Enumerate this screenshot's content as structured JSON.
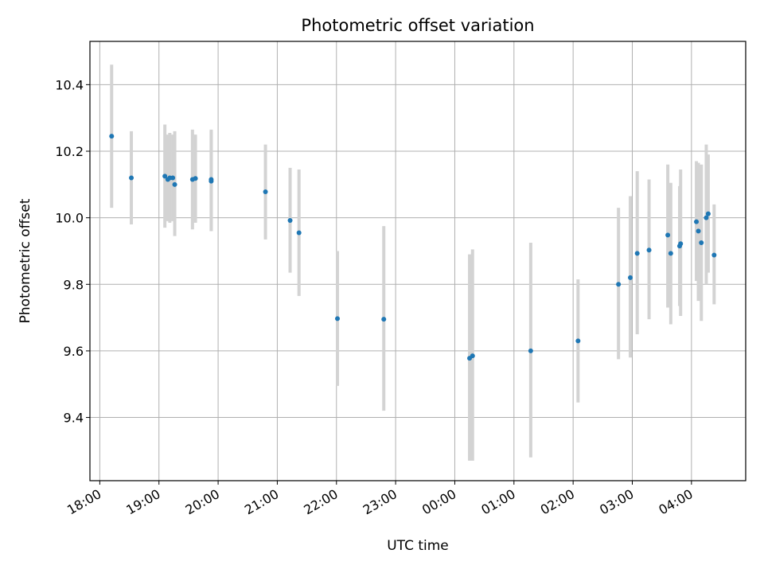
{
  "chart_data": {
    "type": "scatter",
    "title": "Photometric offset variation",
    "xlabel": "UTC time",
    "ylabel": "Photometric offset",
    "grid": true,
    "x_axis": "time",
    "xlim": [
      "2000-01-01T17:50",
      "2000-01-02T04:55"
    ],
    "ylim": [
      9.21,
      10.53
    ],
    "x_ticks": [
      "18:00",
      "19:00",
      "20:00",
      "21:00",
      "22:00",
      "23:00",
      "00:00",
      "01:00",
      "02:00",
      "03:00",
      "04:00"
    ],
    "y_ticks": [
      9.4,
      9.6,
      9.8,
      10.0,
      10.2,
      10.4
    ],
    "colors": {
      "points": "#1f77b4",
      "errorbars": "#d3d3d3",
      "grid": "#b0b0b0"
    },
    "points": [
      {
        "x": "18:12",
        "y": 10.245,
        "lo": 10.03,
        "hi": 10.46
      },
      {
        "x": "18:32",
        "y": 10.12,
        "lo": 9.98,
        "hi": 10.26
      },
      {
        "x": "19:06",
        "y": 10.125,
        "lo": 9.97,
        "hi": 10.28
      },
      {
        "x": "19:09",
        "y": 10.115,
        "lo": 9.99,
        "hi": 10.25
      },
      {
        "x": "19:11",
        "y": 10.12,
        "lo": 9.985,
        "hi": 10.255
      },
      {
        "x": "19:14",
        "y": 10.12,
        "lo": 9.99,
        "hi": 10.25
      },
      {
        "x": "19:16",
        "y": 10.1,
        "lo": 9.945,
        "hi": 10.26
      },
      {
        "x": "19:34",
        "y": 10.115,
        "lo": 9.965,
        "hi": 10.265
      },
      {
        "x": "19:37",
        "y": 10.118,
        "lo": 9.985,
        "hi": 10.25
      },
      {
        "x": "19:53",
        "y": 10.115,
        "lo": 9.96,
        "hi": 10.265
      },
      {
        "x": "19:53",
        "y": 10.11,
        "lo": 9.96,
        "hi": 10.26
      },
      {
        "x": "20:48",
        "y": 10.078,
        "lo": 9.935,
        "hi": 10.22
      },
      {
        "x": "21:13",
        "y": 9.992,
        "lo": 9.835,
        "hi": 10.15
      },
      {
        "x": "21:22",
        "y": 9.955,
        "lo": 9.765,
        "hi": 10.145
      },
      {
        "x": "22:01",
        "y": 9.697,
        "lo": 9.495,
        "hi": 9.9
      },
      {
        "x": "22:48",
        "y": 9.695,
        "lo": 9.42,
        "hi": 9.975
      },
      {
        "x": "00:15",
        "y": 9.578,
        "lo": 9.27,
        "hi": 9.89
      },
      {
        "x": "00:18",
        "y": 9.585,
        "lo": 9.27,
        "hi": 9.905
      },
      {
        "x": "01:17",
        "y": 9.6,
        "lo": 9.28,
        "hi": 9.925
      },
      {
        "x": "02:05",
        "y": 9.63,
        "lo": 9.445,
        "hi": 9.815
      },
      {
        "x": "02:46",
        "y": 9.8,
        "lo": 9.575,
        "hi": 10.03
      },
      {
        "x": "02:58",
        "y": 9.82,
        "lo": 9.58,
        "hi": 10.065
      },
      {
        "x": "03:05",
        "y": 9.893,
        "lo": 9.65,
        "hi": 10.14
      },
      {
        "x": "03:17",
        "y": 9.903,
        "lo": 9.695,
        "hi": 10.115
      },
      {
        "x": "03:36",
        "y": 9.948,
        "lo": 9.73,
        "hi": 10.16
      },
      {
        "x": "03:39",
        "y": 9.893,
        "lo": 9.68,
        "hi": 10.105
      },
      {
        "x": "03:48",
        "y": 9.915,
        "lo": 9.735,
        "hi": 10.095
      },
      {
        "x": "03:49",
        "y": 9.922,
        "lo": 9.705,
        "hi": 10.145
      },
      {
        "x": "04:05",
        "y": 9.988,
        "lo": 9.81,
        "hi": 10.17
      },
      {
        "x": "04:07",
        "y": 9.96,
        "lo": 9.75,
        "hi": 10.165
      },
      {
        "x": "04:10",
        "y": 9.925,
        "lo": 9.69,
        "hi": 10.16
      },
      {
        "x": "04:15",
        "y": 10.0,
        "lo": 9.8,
        "hi": 10.22
      },
      {
        "x": "04:17",
        "y": 10.012,
        "lo": 9.835,
        "hi": 10.19
      },
      {
        "x": "04:23",
        "y": 9.888,
        "lo": 9.74,
        "hi": 10.04
      }
    ]
  }
}
